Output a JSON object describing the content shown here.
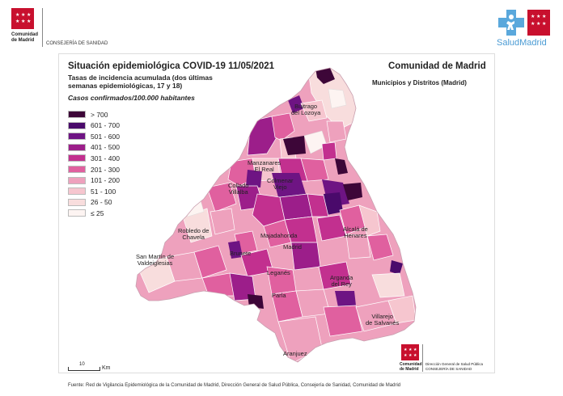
{
  "header": {
    "org_line1": "Comunidad",
    "org_line2": "de Madrid",
    "department": "CONSEJERÍA DE SANIDAD",
    "brand": "SaludMadrid"
  },
  "map": {
    "title": "Situación epidemiológica COVID-19  11/05/2021",
    "subtitle_line1": "Tasas de incidencia acumulada (dos últimas",
    "subtitle_line2": "semanas epidemiológicas, 17 y 18)",
    "units": "Casos confirmados/100.000 habitantes",
    "region": "Comunidad de Madrid",
    "region_sub": "Municipios y Distritos (Madrid)",
    "legend": [
      {
        "label": "> 700",
        "color": "#3d0638"
      },
      {
        "label": "601 - 700",
        "color": "#4a0a6b"
      },
      {
        "label": "501 - 600",
        "color": "#6e1483"
      },
      {
        "label": "401 - 500",
        "color": "#9c1e8a"
      },
      {
        "label": "301 - 400",
        "color": "#c2308f"
      },
      {
        "label": "201 - 300",
        "color": "#e0609f"
      },
      {
        "label": "101 - 200",
        "color": "#eea1bd"
      },
      {
        "label": "51 - 100",
        "color": "#f6c6cf"
      },
      {
        "label": "26 - 50",
        "color": "#f8dddd"
      },
      {
        "label": "≤ 25",
        "color": "#fdf4f2"
      }
    ],
    "places": [
      "Buitrago\ndel Lozoya",
      "Manzanares\nEl Real",
      "Colmenar\nViejo",
      "Collado\nVillalba",
      "Robledo de\nChavela",
      "Majadahonda",
      "Madrid",
      "Alcalá de\nHenares",
      "San Martín de\nValdeiglesias",
      "Brunete",
      "Leganés",
      "Arganda\ndel Rey",
      "Parla",
      "Villarejo\nde Salvanés",
      "Aranjuez"
    ],
    "scale_value": "10",
    "scale_unit": "Km"
  },
  "footer": {
    "inner_logo_line1": "Comunidad",
    "inner_logo_line2": "de Madrid",
    "inner_dept_line1": "Dirección General de Salud Pública",
    "inner_dept_line2": "CONSEJERÍA DE SANIDAD",
    "source": "Fuente: Red de Vigilancia Epidemiológica de la Comunidad de Madrid, Dirección General de Salud Pública, Consejería de Sanidad, Comunidad de Madrid"
  }
}
